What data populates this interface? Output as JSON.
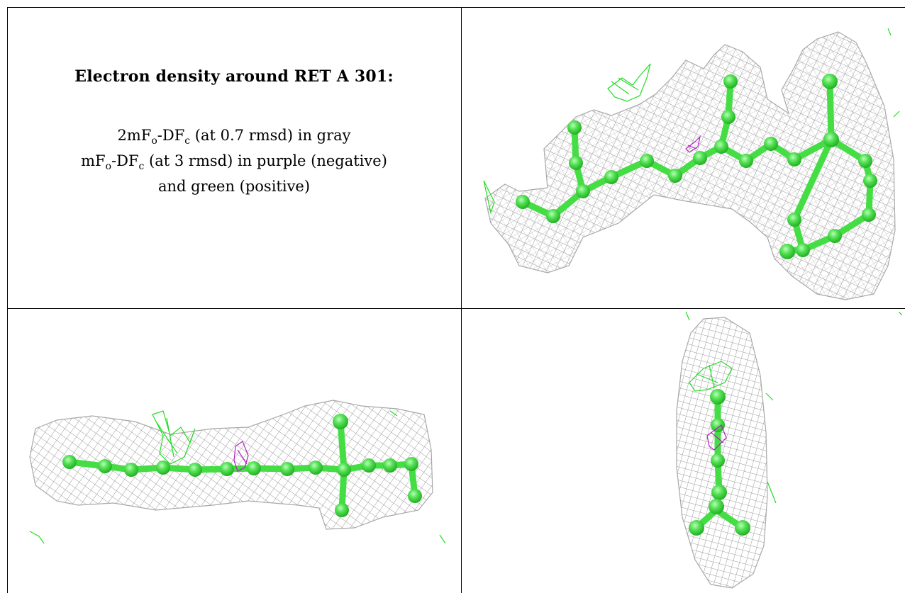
{
  "caption": {
    "title": "Electron density around RET A 301:",
    "line1_pre": "2mF",
    "line1_sub1": "o",
    "line1_mid": "-DF",
    "line1_sub2": "c",
    "line1_post": " (at 0.7 rmsd) in gray",
    "line2_pre": "mF",
    "line2_sub1": "o",
    "line2_mid": "-DF",
    "line2_sub2": "c",
    "line2_post": " (at 3 rmsd) in purple (negative)",
    "line3": "and green (positive)"
  },
  "colors": {
    "mesh_2fofc": "#9a9a9a",
    "mesh_positive": "#22dd22",
    "mesh_negative": "#b020c0",
    "atoms": "#55e055",
    "bonds": "#44dd44"
  },
  "views": [
    "top-right",
    "bottom-left",
    "bottom-right"
  ]
}
